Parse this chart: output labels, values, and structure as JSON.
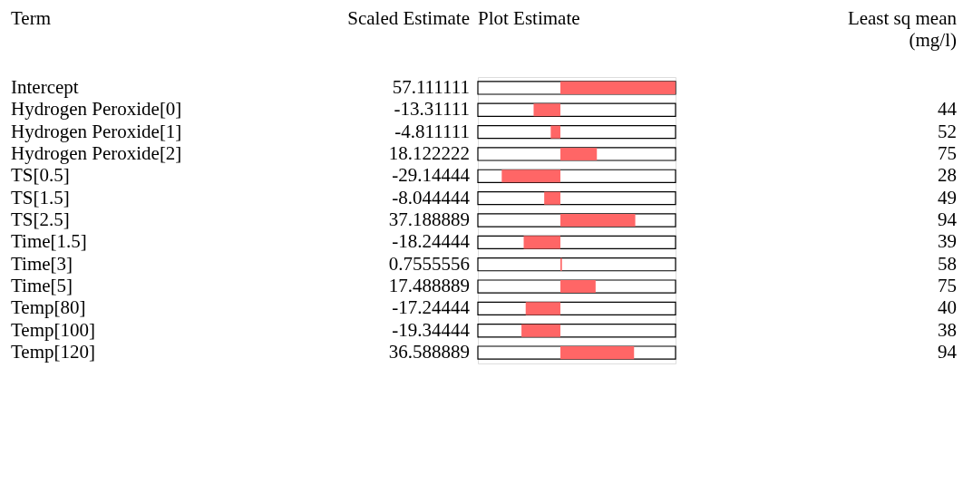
{
  "chart_data": {
    "type": "bar",
    "orientation": "horizontal",
    "ylabel": "Term",
    "xlabel": "Plot Estimate",
    "categories": [
      "Intercept",
      "Hydrogen Peroxide[0]",
      "Hydrogen Peroxide[1]",
      "Hydrogen Peroxide[2]",
      "TS[0.5]",
      "TS[1.5]",
      "TS[2.5]",
      "Time[1.5]",
      "Time[3]",
      "Time[5]",
      "Temp[80]",
      "Temp[100]",
      "Temp[120]"
    ],
    "values": [
      57.111111,
      -13.31111,
      -4.811111,
      18.122222,
      -29.14444,
      -8.044444,
      37.188889,
      -18.24444,
      0.7555556,
      17.488889,
      -17.24444,
      -19.34444,
      36.588889
    ],
    "color": "#ff6666",
    "data_labels": true,
    "xlim": [
      -41,
      57.2
    ],
    "annotations": [
      "Scaled Estimate",
      "Least sq mean (mg/l)",
      "44",
      "52",
      "75",
      "28",
      "49",
      "94",
      "39",
      "58",
      "75",
      "40",
      "38",
      "94"
    ]
  }
}
